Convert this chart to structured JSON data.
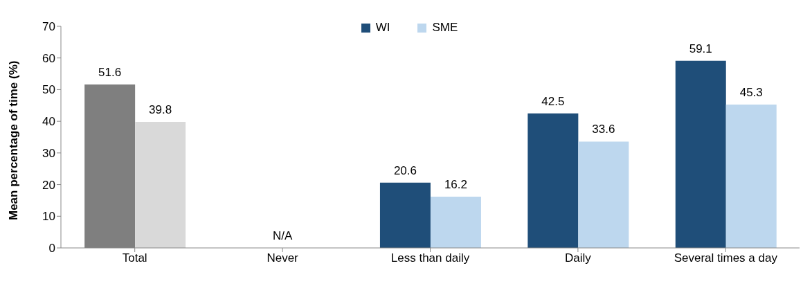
{
  "chart_data": {
    "type": "bar",
    "ylabel": "Mean percentage of time (%)",
    "categories": [
      "Total",
      "Never",
      "Less than daily",
      "Daily",
      "Several times a day"
    ],
    "series": [
      {
        "name": "WI",
        "color": "#1f4e79",
        "colors": [
          "#7f7f7f",
          "#1f4e79",
          "#1f4e79",
          "#1f4e79",
          "#1f4e79"
        ],
        "values": [
          51.6,
          null,
          20.6,
          42.5,
          59.1
        ]
      },
      {
        "name": "SME",
        "color": "#bdd7ee",
        "colors": [
          "#d9d9d9",
          "#bdd7ee",
          "#bdd7ee",
          "#bdd7ee",
          "#bdd7ee"
        ],
        "values": [
          39.8,
          null,
          16.2,
          33.6,
          45.3
        ]
      }
    ],
    "ylim": [
      0,
      70
    ],
    "yticks": [
      0,
      10,
      20,
      30,
      40,
      50,
      60,
      70
    ],
    "grid": false,
    "legend": "top",
    "data_labels": true,
    "annotations": [
      "N/A"
    ]
  }
}
